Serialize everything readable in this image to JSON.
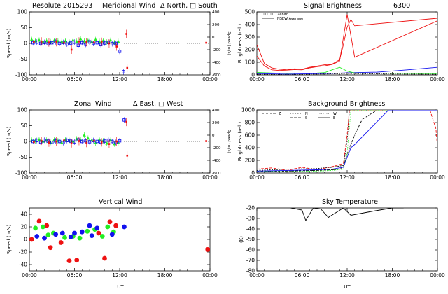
{
  "titles": {
    "p1_left": "Resolute  2015293",
    "p1_mid": "Meridional Wind",
    "p1_right": "Δ North, □ South",
    "p2": "Signal Brightness",
    "p2_right": "6300",
    "p3_left": "Zonal Wind",
    "p3_right": "Δ East, □ West",
    "p4": "Background Brightness",
    "p5": "Vertical Wind",
    "p6": "Sky Temperature"
  },
  "axes": {
    "speed_ms": "Speed (m/s)",
    "speed_small": "Speed (m/s)",
    "brightness": "Brightness (rel.)",
    "kelvin": "(K)",
    "ut": "UT"
  },
  "legend": {
    "zenith": "Zenith",
    "nsew": "NSEW Average",
    "z": "Z",
    "n": "N",
    "s": "S",
    "w": "W",
    "e": "E"
  },
  "ticks": {
    "x": [
      "00:00",
      "06:00",
      "12:00",
      "18:00",
      "00:00"
    ],
    "speed_left": [
      "-100",
      "-50",
      "0",
      "50",
      "100"
    ],
    "speed_right": [
      "-600",
      "-400",
      "-200",
      "0",
      "200",
      "400"
    ],
    "signal_left": [
      "0",
      "100",
      "200",
      "300",
      "400",
      "500"
    ],
    "background_left": [
      "0",
      "200",
      "400",
      "600",
      "800",
      "1000"
    ],
    "vertical_left": [
      "-40",
      "-20",
      "0",
      "20",
      "40"
    ],
    "sky_left": [
      "-80",
      "-70",
      "-60",
      "-50",
      "-40",
      "-30",
      "-20"
    ]
  },
  "colors": {
    "red": "#ee1111",
    "green": "#22ee22",
    "blue": "#1111ee",
    "black": "#000000"
  },
  "chart_data": [
    {
      "type": "scatter",
      "title": "Meridional Wind",
      "ylabel": "Speed (m/s)",
      "xlabel": "",
      "xlim": [
        0,
        24
      ],
      "ylim": [
        -100,
        100
      ],
      "series": [
        {
          "name": "North",
          "color": "#22ee22",
          "x": [
            0.3,
            0.8,
            1.3,
            1.8,
            2.3,
            2.8,
            3.3,
            3.8,
            4.3,
            4.8,
            5.3,
            5.8,
            6.3,
            6.8,
            7.3,
            7.8,
            8.3,
            8.8,
            9.3,
            9.8,
            10.3,
            10.8,
            11.3,
            11.8
          ],
          "y": [
            12,
            8,
            10,
            6,
            8,
            5,
            9,
            7,
            6,
            8,
            4,
            10,
            6,
            14,
            7,
            9,
            5,
            12,
            6,
            8,
            4,
            10,
            2,
            6
          ]
        },
        {
          "name": "South",
          "color": "#1111ee",
          "x": [
            0.5,
            1.0,
            1.5,
            2.0,
            2.5,
            3.0,
            3.5,
            4.0,
            4.5,
            5.0,
            5.5,
            6.0,
            6.5,
            7.0,
            7.5,
            8.0,
            8.5,
            9.0,
            9.5,
            10.0,
            10.5,
            11.0,
            11.5,
            12.0,
            12.5
          ],
          "y": [
            2,
            4,
            0,
            3,
            -1,
            2,
            5,
            0,
            3,
            -2,
            1,
            4,
            -6,
            2,
            -3,
            5,
            0,
            2,
            -4,
            1,
            3,
            -1,
            0,
            -25,
            -90
          ]
        },
        {
          "name": "Zenith",
          "color": "#ee1111",
          "x": [
            0.6,
            1.6,
            2.6,
            3.6,
            4.6,
            5.6,
            6.6,
            7.6,
            8.6,
            9.6,
            10.6,
            11.6,
            12.9,
            13.0,
            23.5
          ],
          "y": [
            5,
            6,
            3,
            4,
            2,
            -20,
            6,
            4,
            3,
            5,
            0,
            -10,
            30,
            -78,
            2
          ]
        }
      ]
    },
    {
      "type": "line",
      "title": "Signal Brightness",
      "ylabel": "Brightness (rel.)",
      "xlabel": "",
      "xlim": [
        0,
        24
      ],
      "ylim": [
        0,
        500
      ],
      "series": [
        {
          "name": "Zenith",
          "color": "#000000",
          "x": [
            0,
            2,
            4,
            6,
            8,
            10,
            11,
            12,
            13,
            16,
            20,
            24
          ],
          "y": [
            5,
            4,
            4,
            5,
            6,
            8,
            10,
            12,
            10,
            8,
            6,
            5
          ]
        },
        {
          "name": "NSEW Average",
          "color": "#1111ee",
          "x": [
            0,
            2,
            4,
            6,
            8,
            10,
            11,
            12,
            13,
            16,
            20,
            24
          ],
          "y": [
            10,
            8,
            6,
            8,
            10,
            12,
            14,
            16,
            18,
            22,
            40,
            60
          ]
        },
        {
          "name": "",
          "color": "#ee1111",
          "x": [
            0,
            1,
            2,
            3,
            4,
            5,
            6,
            7,
            8,
            9,
            10,
            11,
            11.5,
            12,
            12.5,
            13,
            24
          ],
          "y": [
            240,
            90,
            55,
            45,
            40,
            48,
            45,
            60,
            70,
            80,
            85,
            120,
            240,
            380,
            440,
            390,
            450
          ]
        },
        {
          "name": "",
          "color": "#ee1111",
          "x": [
            0,
            1,
            2,
            3,
            4,
            5,
            6,
            7,
            8,
            9,
            10,
            11,
            12,
            13,
            24
          ],
          "y": [
            150,
            70,
            40,
            35,
            38,
            42,
            40,
            55,
            65,
            72,
            82,
            110,
            480,
            140,
            430
          ]
        },
        {
          "name": "",
          "color": "#22ee22",
          "x": [
            0,
            2,
            4,
            6,
            8,
            9,
            10,
            11,
            12,
            13,
            24
          ],
          "y": [
            20,
            15,
            12,
            14,
            15,
            18,
            40,
            60,
            30,
            15,
            10
          ]
        }
      ]
    },
    {
      "type": "scatter",
      "title": "Zonal Wind",
      "ylabel": "Speed (m/s)",
      "xlabel": "",
      "xlim": [
        0,
        24
      ],
      "ylim": [
        -100,
        100
      ],
      "series": [
        {
          "name": "East",
          "color": "#22ee22",
          "x": [
            0.3,
            0.8,
            1.3,
            1.8,
            2.3,
            2.8,
            3.3,
            3.8,
            4.3,
            4.8,
            5.3,
            5.8,
            6.3,
            6.8,
            7.3,
            7.8,
            8.3,
            8.8,
            9.3,
            9.8,
            10.3,
            10.8,
            11.3,
            11.8
          ],
          "y": [
            4,
            2,
            6,
            0,
            4,
            -3,
            5,
            2,
            -4,
            6,
            3,
            0,
            8,
            5,
            20,
            10,
            4,
            -5,
            6,
            2,
            -6,
            4,
            -8,
            -5
          ]
        },
        {
          "name": "West",
          "color": "#1111ee",
          "x": [
            0.5,
            1.0,
            1.5,
            2.0,
            2.5,
            3.0,
            3.5,
            4.0,
            4.5,
            5.0,
            5.5,
            6.0,
            6.5,
            7.0,
            7.5,
            8.0,
            8.5,
            9.0,
            9.5,
            10.0,
            10.5,
            11.0,
            11.5,
            12.0,
            12.6
          ],
          "y": [
            0,
            3,
            -2,
            4,
            1,
            -3,
            2,
            0,
            -4,
            3,
            1,
            -2,
            5,
            0,
            2,
            -1,
            3,
            0,
            -2,
            1,
            4,
            0,
            -3,
            2,
            68
          ]
        },
        {
          "name": "Zenith",
          "color": "#ee1111",
          "x": [
            0.6,
            1.6,
            2.6,
            3.6,
            4.6,
            5.6,
            6.6,
            7.6,
            8.6,
            9.6,
            10.6,
            11.6,
            12.9,
            13.0,
            23.5
          ],
          "y": [
            -2,
            2,
            -4,
            0,
            3,
            -6,
            1,
            -5,
            2,
            -3,
            -8,
            0,
            62,
            -45,
            1
          ]
        }
      ]
    },
    {
      "type": "line",
      "title": "Background Brightness",
      "ylabel": "Brightness (rel.)",
      "xlabel": "",
      "xlim": [
        0,
        24
      ],
      "ylim": [
        0,
        1000
      ],
      "series": [
        {
          "name": "Z",
          "color": "#000000",
          "x": [
            0,
            4,
            8,
            10,
            11,
            11.5,
            12,
            13,
            14,
            16,
            18,
            24
          ],
          "y": [
            20,
            30,
            40,
            50,
            60,
            100,
            300,
            600,
            850,
            1000,
            1000,
            1000
          ]
        },
        {
          "name": "N",
          "color": "#000000",
          "x": [
            0,
            4,
            8,
            10,
            11.5,
            12,
            12.3,
            13,
            24
          ],
          "y": [
            40,
            60,
            70,
            90,
            120,
            500,
            1000,
            1000,
            1000
          ]
        },
        {
          "name": "S",
          "color": "#ee1111",
          "x": [
            0,
            2,
            4,
            6,
            8,
            10,
            11.5,
            12,
            12.3,
            13,
            23,
            23.8,
            24
          ],
          "y": [
            60,
            80,
            40,
            90,
            50,
            100,
            150,
            600,
            1000,
            1000,
            1000,
            700,
            400
          ]
        },
        {
          "name": "W",
          "color": "#22ee22",
          "x": [
            0,
            4,
            8,
            10,
            11.5,
            12,
            12.5,
            13,
            24
          ],
          "y": [
            30,
            20,
            30,
            40,
            60,
            300,
            1000,
            1000,
            1000
          ]
        },
        {
          "name": "E",
          "color": "#1111ee",
          "x": [
            0,
            4,
            8,
            10,
            11.5,
            12,
            12.5,
            13,
            17.5,
            24
          ],
          "y": [
            30,
            40,
            50,
            60,
            90,
            250,
            400,
            450,
            1000,
            1000
          ]
        }
      ]
    },
    {
      "type": "scatter",
      "title": "Vertical Wind",
      "ylabel": "Speed (m/s)",
      "xlabel": "UT",
      "xlim": [
        0,
        24
      ],
      "ylim": [
        -50,
        50
      ],
      "series": [
        {
          "name": "",
          "color": "#ee1111",
          "x": [
            0.3,
            1.3,
            2.3,
            2.8,
            4.2,
            5.3,
            6.3,
            9.2,
            10.0,
            10.7,
            11.5,
            23.7
          ],
          "y": [
            0,
            29,
            22,
            -13,
            -5,
            -34,
            -33,
            10,
            -30,
            28,
            22,
            -16
          ]
        },
        {
          "name": "",
          "color": "#22ee22",
          "x": [
            0.8,
            1.8,
            2.5,
            3.2,
            4.7,
            5.8,
            6.7,
            7.7,
            8.7,
            9.7,
            10.4,
            11.2
          ],
          "y": [
            18,
            20,
            7,
            10,
            3,
            5,
            2,
            13,
            16,
            5,
            20,
            12
          ]
        },
        {
          "name": "",
          "color": "#1111ee",
          "x": [
            1.0,
            2.0,
            3.5,
            4.4,
            5.5,
            6.0,
            7.0,
            8.0,
            8.3,
            9.0,
            11.0,
            12.6
          ],
          "y": [
            5,
            2,
            8,
            10,
            4,
            10,
            12,
            22,
            6,
            18,
            8,
            20
          ]
        }
      ]
    },
    {
      "type": "line",
      "title": "Sky Temperature",
      "ylabel": "(K)",
      "xlabel": "UT",
      "xlim": [
        0,
        24
      ],
      "ylim": [
        -80,
        -20
      ],
      "series": [
        {
          "name": "",
          "color": "#000000",
          "x": [
            4.5,
            6.0,
            6.5,
            7.5,
            8.5,
            9.5,
            11.5,
            12.5,
            15.5,
            18.0,
            19.5
          ],
          "y": [
            -20,
            -22,
            -32,
            -20,
            -21,
            -29,
            -20,
            -27,
            -23,
            -20,
            -20
          ]
        }
      ]
    }
  ]
}
